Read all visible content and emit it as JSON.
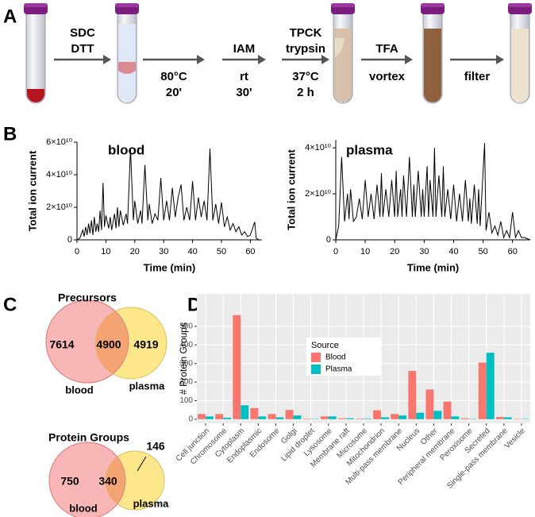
{
  "panel_labels": [
    "A",
    "B",
    "C",
    "D"
  ],
  "panel_a": {
    "steps": [
      {
        "above": [
          "SDC",
          "DTT"
        ],
        "below": []
      },
      {
        "above": [],
        "below": [
          "80°C",
          "20'"
        ]
      },
      {
        "above": [
          "IAM"
        ],
        "below": [
          "rt",
          "30'"
        ]
      },
      {
        "above": [
          "TPCK",
          "trypsin"
        ],
        "below": [
          "37°C",
          "2 h"
        ]
      },
      {
        "above": [
          "TFA"
        ],
        "below": [
          "vortex"
        ]
      },
      {
        "above": [],
        "below": [
          "filter"
        ]
      }
    ]
  },
  "chart_data": [
    {
      "type": "line",
      "title": "blood",
      "x_label": "Time (min)",
      "y_label": "Total ion current",
      "color": "#000000",
      "xlim": [
        0,
        64
      ],
      "xticks": [
        0,
        10,
        20,
        30,
        40,
        50,
        60
      ],
      "ylim": [
        0,
        60000000000.0
      ],
      "yticks": [
        0,
        {
          "value": 20000000000.0,
          "label": "2×10¹⁰"
        },
        {
          "value": 40000000000.0,
          "label": "4×10¹⁰"
        },
        {
          "value": 60000000000.0,
          "label": "6×10¹⁰"
        }
      ],
      "x": [
        0,
        1,
        2,
        2.5,
        3,
        3.5,
        4,
        4.5,
        5,
        5.5,
        6,
        6.5,
        7,
        7.5,
        8,
        8.5,
        9,
        9.5,
        10,
        11,
        11.5,
        12,
        13,
        13.5,
        14,
        14.5,
        15,
        16,
        17,
        17.5,
        18.5,
        19.5,
        20,
        21,
        22,
        22.5,
        23.5,
        24.5,
        25,
        26,
        27,
        28,
        29,
        30,
        31,
        32,
        33,
        34,
        35,
        36,
        37,
        38,
        39,
        40,
        41,
        42,
        43,
        44,
        45,
        46,
        47,
        48,
        49,
        50,
        51,
        52,
        53,
        54,
        55,
        56,
        57,
        58,
        59,
        60,
        61.5,
        62,
        63,
        64
      ],
      "values": [
        0,
        1000000000.0,
        6000000000.0,
        2000000000.0,
        8000000000.0,
        3000000000.0,
        10000000000.0,
        4000000000.0,
        12000000000.0,
        3000000000.0,
        14000000000.0,
        5000000000.0,
        10000000000.0,
        5000000000.0,
        18000000000.0,
        6000000000.0,
        35000000000.0,
        8000000000.0,
        15000000000.0,
        7000000000.0,
        14000000000.0,
        6000000000.0,
        16000000000.0,
        7000000000.0,
        20000000000.0,
        8000000000.0,
        18000000000.0,
        9000000000.0,
        16000000000.0,
        10000000000.0,
        56000000000.0,
        12000000000.0,
        24000000000.0,
        10000000000.0,
        18000000000.0,
        10000000000.0,
        46000000000.0,
        12000000000.0,
        22000000000.0,
        10000000000.0,
        16000000000.0,
        12000000000.0,
        38000000000.0,
        12000000000.0,
        24000000000.0,
        12000000000.0,
        32000000000.0,
        14000000000.0,
        26000000000.0,
        34000000000.0,
        12000000000.0,
        20000000000.0,
        12000000000.0,
        36000000000.0,
        12000000000.0,
        26000000000.0,
        14000000000.0,
        24000000000.0,
        12000000000.0,
        56000000000.0,
        12000000000.0,
        22000000000.0,
        10000000000.0,
        23000000000.0,
        8000000000.0,
        14000000000.0,
        6000000000.0,
        10000000000.0,
        5000000000.0,
        8000000000.0,
        3000000000.0,
        5000000000.0,
        2000000000.0,
        3000000000.0,
        11000000000.0,
        1000000000.0,
        0,
        0
      ]
    },
    {
      "type": "line",
      "title": "plasma",
      "x_label": "Time (min)",
      "y_label": "Total ion current",
      "color": "#000000",
      "xlim": [
        0,
        66
      ],
      "xticks": [
        0,
        10,
        20,
        30,
        40,
        50,
        60
      ],
      "ylim": [
        0,
        43500000000.0
      ],
      "yticks": [
        0,
        {
          "value": 20000000000.0,
          "label": "2×10¹⁰"
        },
        {
          "value": 40000000000.0,
          "label": "4×10¹⁰"
        }
      ],
      "x": [
        0,
        1,
        2,
        3,
        4,
        4.5,
        5,
        6,
        7,
        8,
        9,
        10,
        11,
        12,
        13,
        14,
        15,
        15.5,
        16,
        17,
        18,
        19,
        20,
        20.5,
        21,
        22,
        22.5,
        23,
        24,
        25,
        26,
        26.5,
        27,
        28,
        29,
        29.5,
        30,
        31,
        31.5,
        32,
        33,
        33.5,
        34,
        35,
        36,
        36.5,
        37,
        38,
        39,
        40,
        41,
        42,
        43,
        44,
        45,
        45.5,
        46,
        47,
        48,
        48.5,
        49,
        50.5,
        51,
        52,
        53,
        54,
        55,
        56,
        57,
        58,
        59,
        60,
        61,
        62,
        63,
        64,
        66
      ],
      "values": [
        0,
        6000000000.0,
        36000000000.0,
        8000000000.0,
        20000000000.0,
        9000000000.0,
        22000000000.0,
        8000000000.0,
        10000000000.0,
        18000000000.0,
        9000000000.0,
        26000000000.0,
        10000000000.0,
        20000000000.0,
        9000000000.0,
        24000000000.0,
        10000000000.0,
        29000000000.0,
        10000000000.0,
        22000000000.0,
        10000000000.0,
        26000000000.0,
        10000000000.0,
        30000000000.0,
        10000000000.0,
        22000000000.0,
        10000000000.0,
        28000000000.0,
        10000000000.0,
        36000000000.0,
        10000000000.0,
        24000000000.0,
        10000000000.0,
        30000000000.0,
        10000000000.0,
        22000000000.0,
        10000000000.0,
        32000000000.0,
        10000000000.0,
        26000000000.0,
        10000000000.0,
        40000000000.0,
        10000000000.0,
        28000000000.0,
        10000000000.0,
        32000000000.0,
        10000000000.0,
        22000000000.0,
        9000000000.0,
        24000000000.0,
        8000000000.0,
        20000000000.0,
        8000000000.0,
        26000000000.0,
        8000000000.0,
        18000000000.0,
        7000000000.0,
        24000000000.0,
        7000000000.0,
        22000000000.0,
        6000000000.0,
        42000000000.0,
        4000000000.0,
        12000000000.0,
        3000000000.0,
        6000000000.0,
        2000000000.0,
        8000000000.0,
        1000000000.0,
        4000000000.0,
        1000000000.0,
        12000000000.0,
        1000000000.0,
        4000000000.0,
        1000000000.0,
        1000000000.0,
        0
      ]
    },
    {
      "type": "venn",
      "title": "Precursors",
      "series": [
        {
          "name": "blood",
          "color": "#f9b6b6"
        },
        {
          "name": "plasma",
          "color": "#fce88a"
        }
      ],
      "overlap_color": "#f4a473",
      "values": [
        7614,
        4900,
        4919
      ]
    },
    {
      "type": "venn",
      "title": "Protein Groups",
      "series": [
        {
          "name": "blood",
          "color": "#f9b6b6"
        },
        {
          "name": "plasma",
          "color": "#fce88a"
        }
      ],
      "overlap_color": "#f4a473",
      "values": [
        750,
        340,
        146
      ]
    },
    {
      "type": "bar",
      "y_label": "# Protein Groups",
      "legend_title": "Source",
      "categories": [
        "Cell junction",
        "Chromosome",
        "Cytoplasm",
        "Endoplasmic",
        "Endosome",
        "Golgi",
        "Lipid droplet",
        "Lysosome",
        "Membrane raft",
        "Microsome",
        "Mitochondrion",
        "Multi-pass membrane",
        "Nucleus",
        "Other",
        "Peripheral membrane",
        "Peroxisome",
        "Secreted",
        "Single-pass membrane",
        "Vesicle"
      ],
      "series": [
        {
          "name": "Blood",
          "color": "#F8766D",
          "values": [
            28,
            28,
            560,
            60,
            28,
            50,
            3,
            15,
            5,
            3,
            48,
            28,
            260,
            160,
            95,
            5,
            305,
            12,
            2
          ]
        },
        {
          "name": "Plasma",
          "color": "#00BFC4",
          "values": [
            15,
            8,
            75,
            15,
            10,
            20,
            2,
            15,
            5,
            3,
            10,
            20,
            35,
            45,
            15,
            2,
            358,
            10,
            2
          ]
        }
      ],
      "ylim": [
        -22,
        675
      ],
      "yticks": [
        0,
        100,
        200,
        300,
        400,
        500
      ],
      "grid": true
    }
  ]
}
